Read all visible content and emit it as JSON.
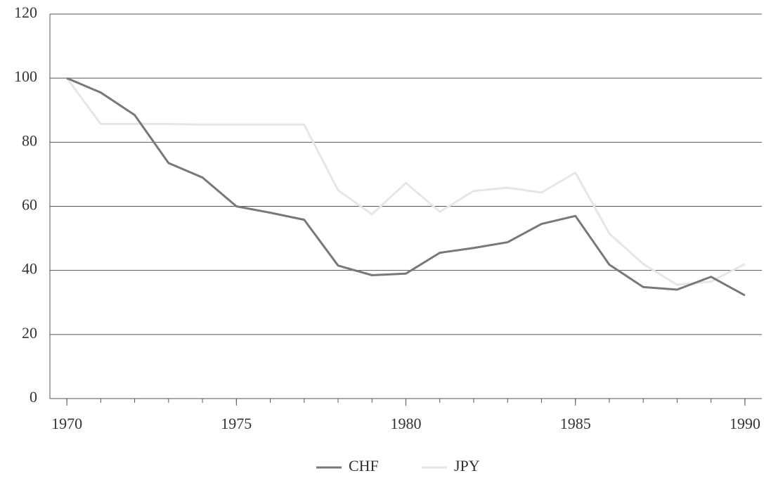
{
  "chart_data": {
    "type": "line",
    "x": [
      1970,
      1971,
      1972,
      1973,
      1974,
      1975,
      1976,
      1977,
      1978,
      1979,
      1980,
      1981,
      1982,
      1983,
      1984,
      1985,
      1986,
      1987,
      1988,
      1989,
      1990
    ],
    "series": [
      {
        "name": "CHF",
        "color": "#787878",
        "values": [
          100,
          95.5,
          88.5,
          73.5,
          69,
          60,
          58,
          55.8,
          41.5,
          38.5,
          39,
          45.5,
          47,
          48.8,
          54.5,
          57,
          41.8,
          34.8,
          34,
          38,
          32.2
        ]
      },
      {
        "name": "JPY",
        "color": "#e6e6e6",
        "values": [
          100,
          85.7,
          85.7,
          85.7,
          85.5,
          85.5,
          85.5,
          85.5,
          65,
          57.5,
          67.3,
          58.3,
          64.8,
          65.8,
          64.3,
          70.5,
          51.5,
          42,
          35.5,
          36.5,
          42
        ]
      }
    ],
    "xlim": [
      1969.5,
      1990.5
    ],
    "xticks": [
      1970,
      1975,
      1980,
      1985,
      1990
    ],
    "ylim": [
      0,
      120
    ],
    "yticks": [
      0,
      20,
      40,
      60,
      80,
      100,
      120
    ],
    "grid": true,
    "legend": "bottom"
  }
}
